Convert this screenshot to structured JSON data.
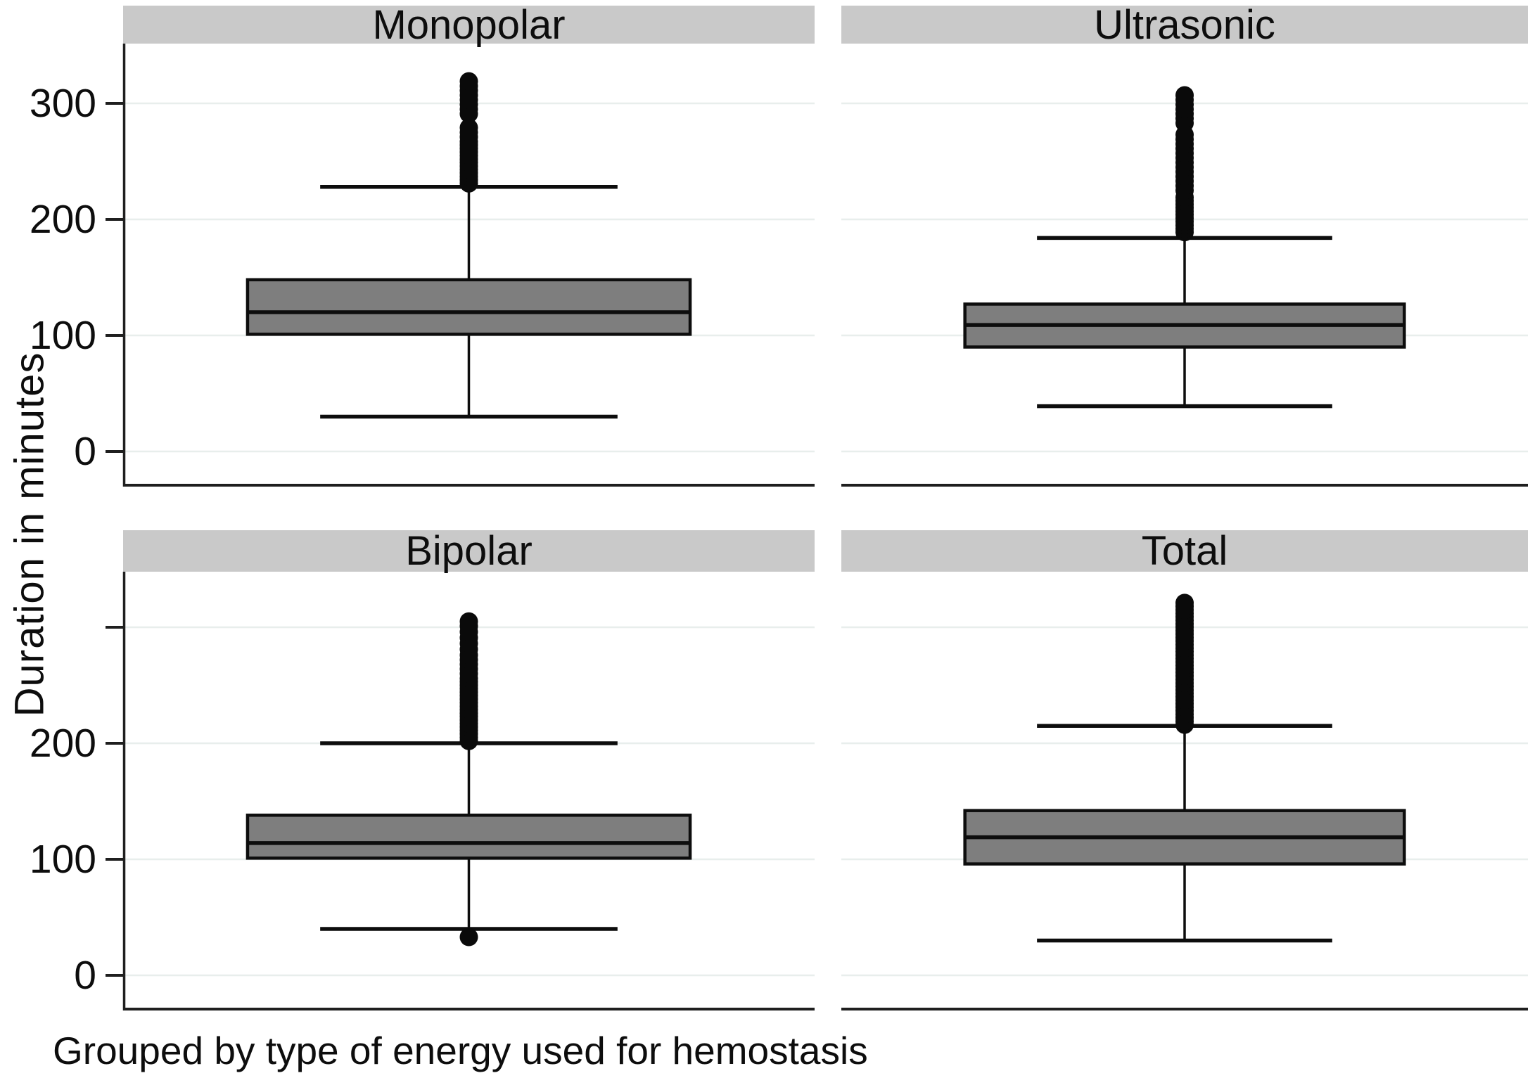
{
  "figure": {
    "ylabel": "Duration in minutes",
    "caption": "Grouped by type of energy used for hemostasis",
    "colors": {
      "box_fill": "#7e7e7e",
      "box_stroke": "#0d0d0d",
      "strip_bg": "#c9c9c9",
      "grid": "#e8eeec",
      "axis": "#1f1f1f",
      "text": "#0d0d0d",
      "outlier": "#0a0a0a"
    }
  },
  "chart_data": {
    "type": "box",
    "title": "",
    "xlabel": "Grouped by type of energy used for hemostasis",
    "ylabel": "Duration in minutes",
    "yticks": [
      0,
      100,
      200,
      300
    ],
    "rows": [
      {
        "ylim": [
          -30,
          352
        ],
        "tick_labels": [
          "0",
          "100",
          "200",
          "300"
        ]
      },
      {
        "ylim": [
          -35,
          347
        ],
        "tick_labels": [
          "0",
          "100",
          "200",
          ""
        ]
      }
    ],
    "legend": "none",
    "grid": "horizontal",
    "panels": [
      {
        "title": "Monopolar",
        "row": 0,
        "col": 0,
        "whisker_low": 30,
        "q1": 101,
        "median": 120,
        "q3": 148,
        "whisker_high": 228,
        "outliers_high": [
          231,
          234,
          237,
          240,
          243,
          246,
          249,
          252,
          255,
          258,
          261,
          264,
          267,
          271,
          275,
          279,
          291,
          295,
          299,
          303,
          307,
          311,
          315,
          319
        ],
        "outliers_low": []
      },
      {
        "title": "Ultrasonic",
        "row": 0,
        "col": 1,
        "whisker_low": 39,
        "q1": 90,
        "median": 109,
        "q3": 127,
        "whisker_high": 184,
        "outliers_high": [
          189,
          192,
          195,
          198,
          201,
          204,
          207,
          210,
          213,
          216,
          219,
          225,
          229,
          233,
          237,
          241,
          245,
          249,
          253,
          257,
          261,
          265,
          269,
          273,
          283,
          287,
          291,
          295,
          299,
          303,
          307
        ],
        "outliers_low": []
      },
      {
        "title": "Bipolar",
        "row": 1,
        "col": 0,
        "whisker_low": 40,
        "q1": 101,
        "median": 114,
        "q3": 138,
        "whisker_high": 200,
        "outliers_high": [
          202,
          205,
          208,
          211,
          214,
          217,
          220,
          223,
          226,
          229,
          232,
          235,
          238,
          241,
          244,
          247,
          250,
          253,
          256,
          260,
          264,
          268,
          272,
          276,
          281,
          286,
          291,
          296,
          301,
          305
        ],
        "outliers_low": [
          33
        ]
      },
      {
        "title": "Total",
        "row": 1,
        "col": 1,
        "whisker_low": 30,
        "q1": 96,
        "median": 119,
        "q3": 142,
        "whisker_high": 215,
        "outliers_high": [
          216,
          219,
          222,
          225,
          228,
          231,
          234,
          237,
          240,
          243,
          246,
          249,
          252,
          255,
          258,
          261,
          264,
          267,
          270,
          273,
          276,
          279,
          282,
          285,
          288,
          291,
          294,
          297,
          300,
          303,
          306,
          309,
          312,
          315,
          318,
          321
        ],
        "outliers_low": []
      }
    ]
  }
}
